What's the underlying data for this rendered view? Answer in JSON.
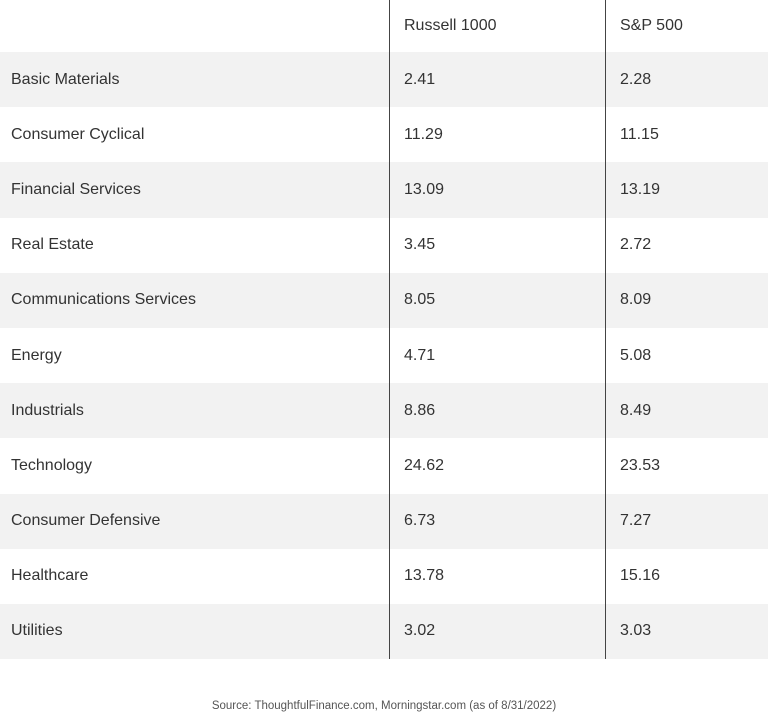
{
  "table": {
    "columns": [
      "Russell 1000",
      "S&P 500"
    ],
    "rows": [
      [
        "Basic Materials",
        "2.41",
        "2.28"
      ],
      [
        "Consumer Cyclical",
        "11.29",
        "11.15"
      ],
      [
        "Financial Services",
        "13.09",
        "13.19"
      ],
      [
        "Real Estate",
        "3.45",
        "2.72"
      ],
      [
        "Communications Services",
        "8.05",
        "8.09"
      ],
      [
        "Energy",
        "4.71",
        "5.08"
      ],
      [
        "Industrials",
        "8.86",
        "8.49"
      ],
      [
        "Technology",
        "24.62",
        "23.53"
      ],
      [
        "Consumer Defensive",
        "6.73",
        "7.27"
      ],
      [
        "Healthcare",
        "13.78",
        "15.16"
      ],
      [
        "Utilities",
        "3.02",
        "3.03"
      ]
    ]
  },
  "source": "Source: ThoughtfulFinance.com, Morningstar.com (as of 8/31/2022)"
}
